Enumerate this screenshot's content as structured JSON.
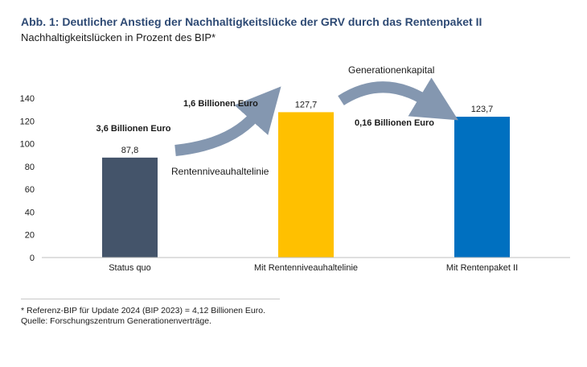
{
  "title": "Abb. 1: Deutlicher Anstieg der Nachhaltigkeitslücke der GRV durch das Rentenpaket II",
  "subtitle": "Nachhaltigkeitslücken in Prozent des BIP*",
  "chart_data": {
    "type": "bar",
    "categories": [
      "Status quo",
      "Mit Rentenniveauhaltelinie",
      "Mit Rentenpaket II"
    ],
    "values": [
      87.8,
      127.7,
      123.7
    ],
    "value_labels": [
      "87,8",
      "127,7",
      "123,7"
    ],
    "colors": [
      "#44546a",
      "#ffc000",
      "#0070c0"
    ],
    "ylim": [
      0,
      140
    ],
    "yticks": [
      0,
      20,
      40,
      60,
      80,
      100,
      120,
      140
    ],
    "grid": false,
    "annotations": {
      "bar1_amount": "3,6 Billionen Euro",
      "arrow1_amount": "1,6 Billionen Euro",
      "arrow1_label": "Rentenniveauhaltelinie",
      "arrow2_label": "Generationenkapital",
      "arrow2_amount": "0,16 Billionen Euro"
    },
    "arrow_color": "#8497b0"
  },
  "footnotes": {
    "bip": "* Referenz-BIP für Update 2024 (BIP 2023) = 4,12 Billionen Euro.",
    "source": "Quelle: Forschungszentrum Generationenverträge."
  }
}
